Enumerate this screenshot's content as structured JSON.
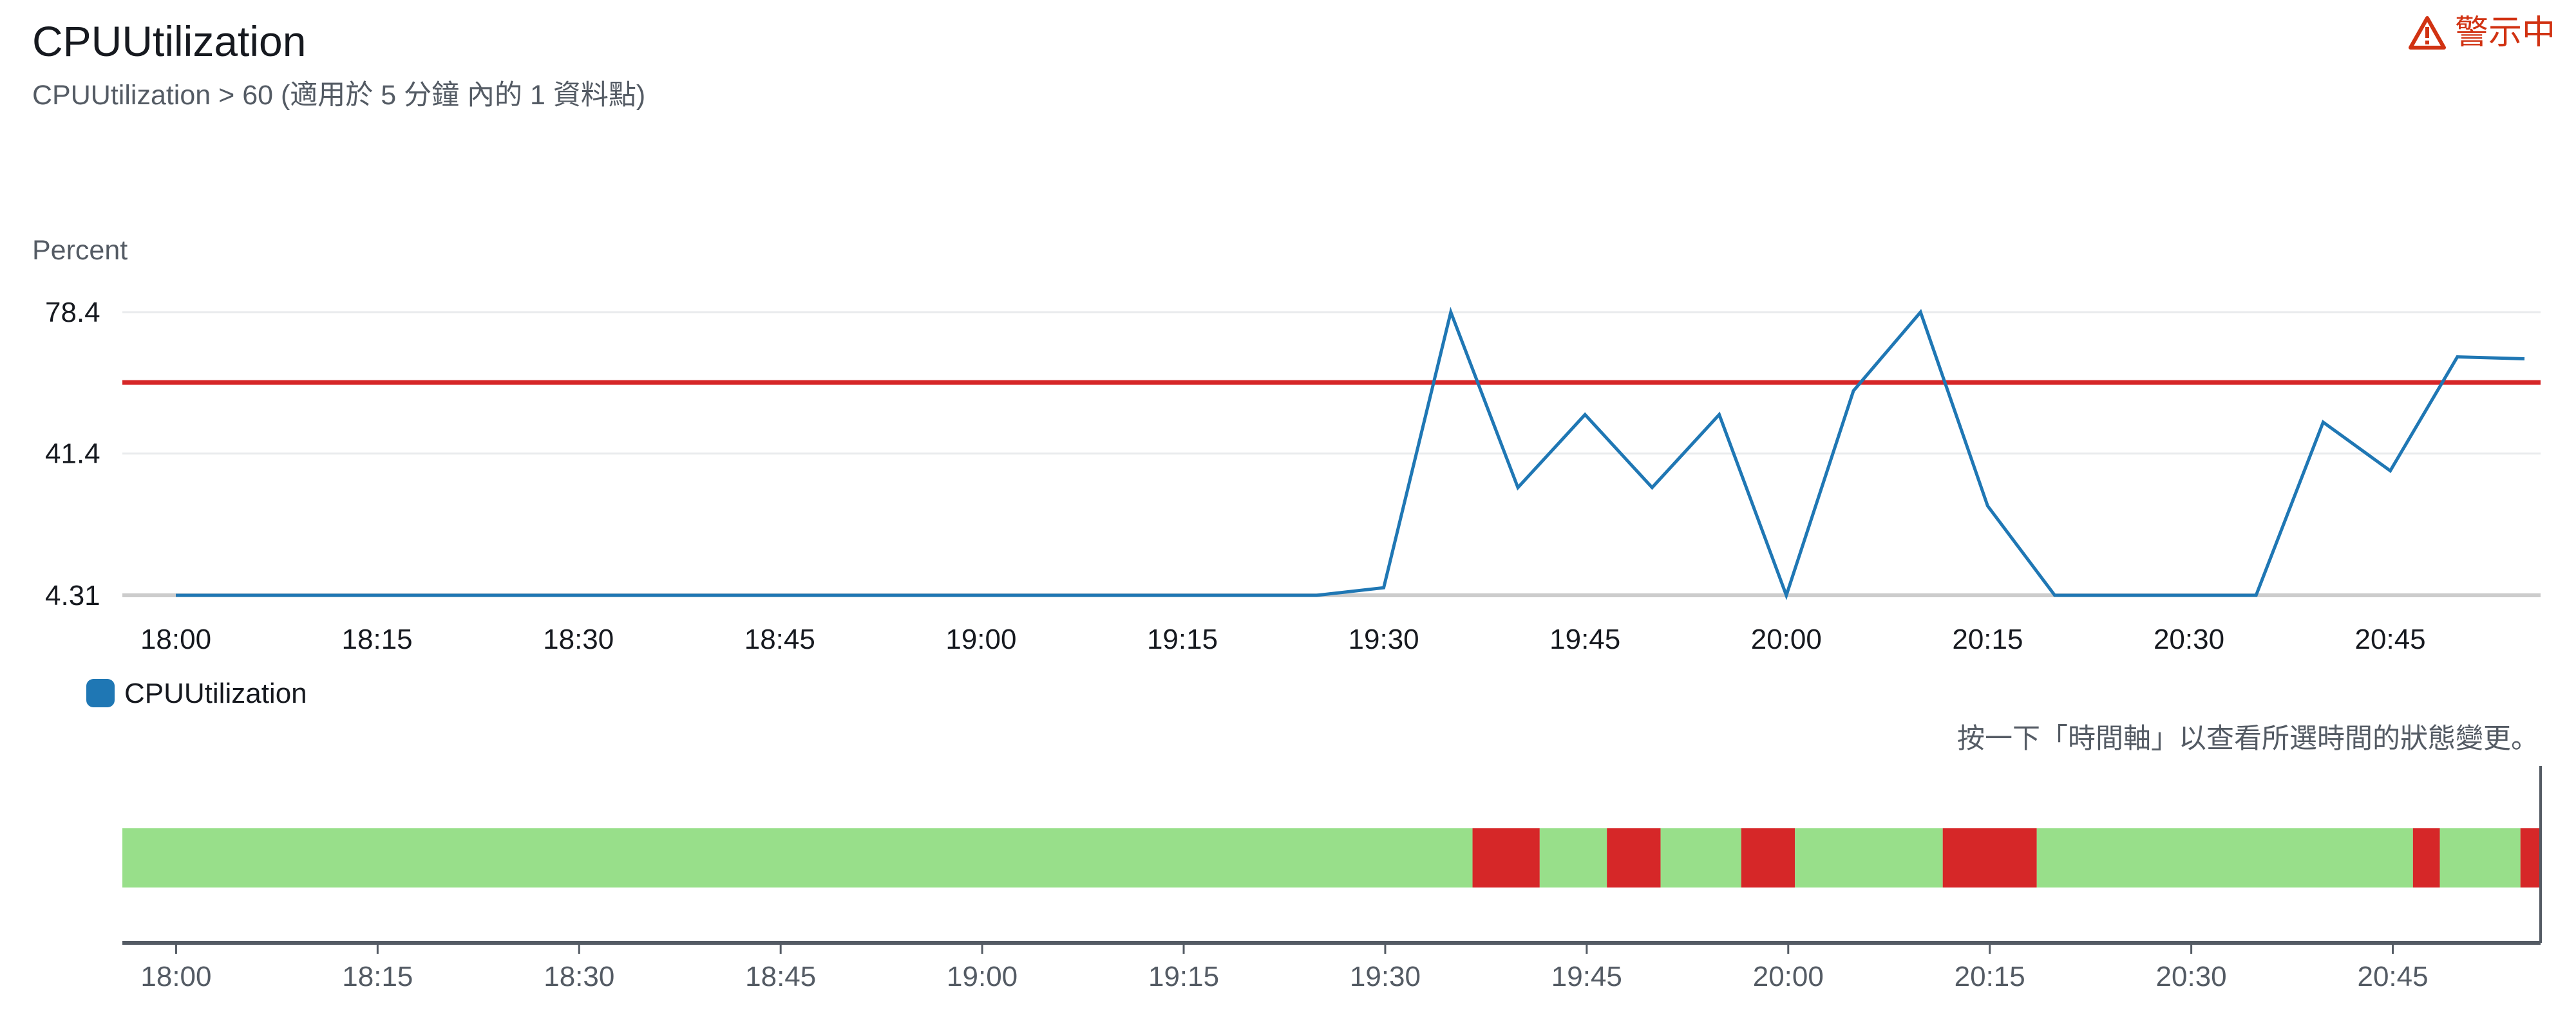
{
  "header": {
    "title": "CPUUtilization",
    "subtitle": "CPUUtilization > 60 (適用於 5 分鐘 內的 1 資料點)",
    "alarm_state_label": "警示中",
    "alarm_state_icon": "warning-triangle-icon"
  },
  "colors": {
    "series": "#1f77b4",
    "threshold": "#d62728",
    "ok_state": "#98df8a",
    "alarm_state": "#d62728",
    "alarm_text": "#d13212"
  },
  "chart_data": [
    {
      "type": "line",
      "ylabel": "Percent",
      "yticks": [
        4.31,
        41.4,
        78.4
      ],
      "ylim": [
        4.31,
        78.4
      ],
      "xticks": [
        "18:00",
        "18:15",
        "18:30",
        "18:45",
        "19:00",
        "19:15",
        "19:30",
        "19:45",
        "20:00",
        "20:15",
        "20:30",
        "20:45"
      ],
      "xlim": [
        "18:00",
        "20:55"
      ],
      "threshold": 60,
      "grid": true,
      "legend_position": "bottom-left",
      "series": [
        {
          "name": "CPUUtilization",
          "x": [
            "18:00",
            "18:05",
            "18:10",
            "18:15",
            "18:20",
            "18:25",
            "18:30",
            "18:35",
            "18:40",
            "18:45",
            "18:50",
            "18:55",
            "19:00",
            "19:05",
            "19:10",
            "19:15",
            "19:20",
            "19:25",
            "19:30",
            "19:35",
            "19:40",
            "19:45",
            "19:50",
            "19:55",
            "20:00",
            "20:05",
            "20:10",
            "20:15",
            "20:20",
            "20:25",
            "20:30",
            "20:35",
            "20:40",
            "20:45",
            "20:50",
            "20:55"
          ],
          "values": [
            4.31,
            4.31,
            4.31,
            4.31,
            4.31,
            4.31,
            4.31,
            4.31,
            4.31,
            4.31,
            4.31,
            4.31,
            4.31,
            4.31,
            4.31,
            4.31,
            4.31,
            4.31,
            6.3,
            78.4,
            32.5,
            51.6,
            32.5,
            51.6,
            4.31,
            57.8,
            78.4,
            27.7,
            4.31,
            4.31,
            4.31,
            4.31,
            49.6,
            36.9,
            66.7,
            66.2
          ]
        }
      ]
    },
    {
      "type": "timeline",
      "xticks": [
        "18:00",
        "18:15",
        "18:30",
        "18:45",
        "19:00",
        "19:15",
        "19:30",
        "19:45",
        "20:00",
        "20:15",
        "20:30",
        "20:45"
      ],
      "xlim": [
        "17:56",
        "20:56"
      ],
      "states": [
        "OK",
        "ALARM"
      ],
      "segments": [
        {
          "start": "17:56",
          "end": "19:36.5",
          "state": "OK"
        },
        {
          "start": "19:36.5",
          "end": "19:41.5",
          "state": "ALARM"
        },
        {
          "start": "19:41.5",
          "end": "19:46.5",
          "state": "OK"
        },
        {
          "start": "19:46.5",
          "end": "19:50.5",
          "state": "ALARM"
        },
        {
          "start": "19:50.5",
          "end": "19:56.5",
          "state": "OK"
        },
        {
          "start": "19:56.5",
          "end": "20:00.5",
          "state": "ALARM"
        },
        {
          "start": "20:00.5",
          "end": "20:11.5",
          "state": "OK"
        },
        {
          "start": "20:11.5",
          "end": "20:18.5",
          "state": "ALARM"
        },
        {
          "start": "20:18.5",
          "end": "20:46.5",
          "state": "OK"
        },
        {
          "start": "20:46.5",
          "end": "20:48.5",
          "state": "ALARM"
        },
        {
          "start": "20:48.5",
          "end": "20:54.5",
          "state": "OK"
        },
        {
          "start": "20:54.5",
          "end": "20:56",
          "state": "ALARM"
        }
      ],
      "hint": "按一下「時間軸」以查看所選時間的狀態變更。"
    }
  ]
}
